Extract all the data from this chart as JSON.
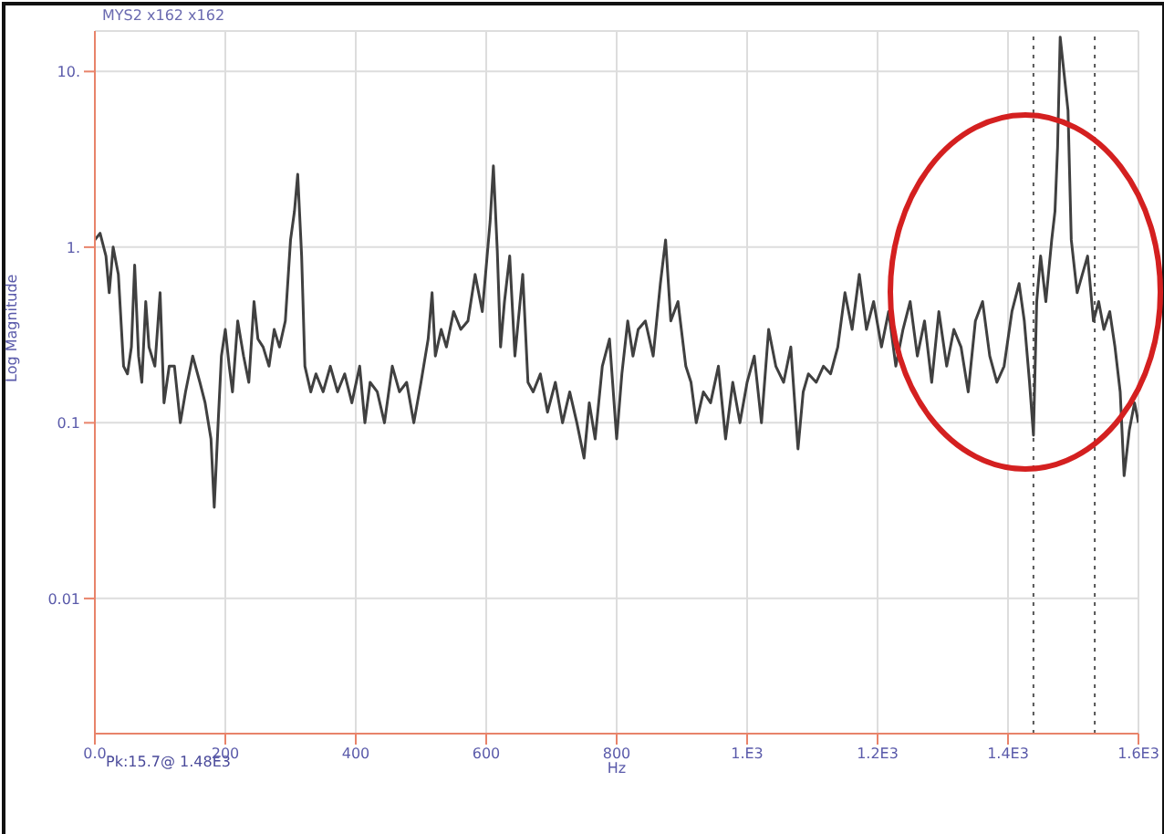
{
  "chart_data": {
    "type": "line",
    "title": "MYS2 x162 x162",
    "xlabel": "Hz",
    "ylabel": "Log Magnitude",
    "annotations": [
      "Pk:15.7@ 1.48E3"
    ],
    "x": [
      0,
      8,
      17,
      22,
      28,
      36,
      44,
      50,
      56,
      61,
      67,
      72,
      78,
      83,
      92,
      100,
      106,
      114,
      122,
      131,
      139,
      150,
      161,
      169,
      178,
      183,
      189,
      194,
      200,
      206,
      211,
      219,
      228,
      236,
      244,
      250,
      258,
      267,
      275,
      283,
      292,
      300,
      306,
      311,
      317,
      322,
      331,
      339,
      350,
      361,
      372,
      383,
      394,
      406,
      414,
      422,
      433,
      444,
      456,
      467,
      478,
      489,
      500,
      511,
      517,
      522,
      531,
      539,
      550,
      561,
      572,
      583,
      594,
      606,
      611,
      617,
      622,
      628,
      636,
      644,
      656,
      664,
      672,
      683,
      694,
      706,
      717,
      728,
      739,
      750,
      758,
      767,
      778,
      789,
      800,
      808,
      817,
      825,
      833,
      844,
      856,
      867,
      875,
      883,
      894,
      906,
      914,
      922,
      933,
      944,
      956,
      967,
      978,
      989,
      1000,
      1011,
      1022,
      1033,
      1044,
      1056,
      1067,
      1078,
      1086,
      1094,
      1106,
      1117,
      1128,
      1139,
      1150,
      1161,
      1172,
      1183,
      1194,
      1206,
      1217,
      1228,
      1239,
      1250,
      1261,
      1272,
      1283,
      1294,
      1306,
      1317,
      1328,
      1339,
      1350,
      1361,
      1372,
      1383,
      1394,
      1406,
      1417,
      1425,
      1433,
      1439,
      1444,
      1450,
      1458,
      1467,
      1472,
      1476,
      1480,
      1492,
      1497,
      1506,
      1514,
      1522,
      1531,
      1539,
      1547,
      1556,
      1564,
      1572,
      1578,
      1586,
      1594,
      1600
    ],
    "series": [
      {
        "color": "#404040",
        "values": [
          1.1,
          1.2,
          0.89,
          0.55,
          1.0,
          0.7,
          0.21,
          0.19,
          0.27,
          0.79,
          0.24,
          0.17,
          0.49,
          0.27,
          0.21,
          0.55,
          0.13,
          0.21,
          0.21,
          0.1,
          0.15,
          0.24,
          0.17,
          0.13,
          0.081,
          0.033,
          0.1,
          0.24,
          0.34,
          0.21,
          0.15,
          0.38,
          0.24,
          0.17,
          0.49,
          0.3,
          0.27,
          0.21,
          0.34,
          0.27,
          0.38,
          1.1,
          1.6,
          2.6,
          0.89,
          0.21,
          0.15,
          0.19,
          0.15,
          0.21,
          0.15,
          0.19,
          0.13,
          0.21,
          0.1,
          0.17,
          0.15,
          0.1,
          0.21,
          0.15,
          0.17,
          0.1,
          0.17,
          0.3,
          0.55,
          0.24,
          0.34,
          0.27,
          0.43,
          0.34,
          0.38,
          0.7,
          0.43,
          1.4,
          2.9,
          0.95,
          0.27,
          0.49,
          0.89,
          0.24,
          0.7,
          0.17,
          0.15,
          0.19,
          0.115,
          0.17,
          0.1,
          0.15,
          0.1,
          0.063,
          0.13,
          0.081,
          0.21,
          0.3,
          0.081,
          0.19,
          0.38,
          0.24,
          0.34,
          0.38,
          0.24,
          0.62,
          1.1,
          0.38,
          0.49,
          0.21,
          0.17,
          0.1,
          0.15,
          0.13,
          0.21,
          0.081,
          0.17,
          0.1,
          0.17,
          0.24,
          0.1,
          0.34,
          0.21,
          0.17,
          0.27,
          0.071,
          0.15,
          0.19,
          0.17,
          0.21,
          0.19,
          0.27,
          0.55,
          0.34,
          0.7,
          0.34,
          0.49,
          0.27,
          0.43,
          0.21,
          0.34,
          0.49,
          0.24,
          0.38,
          0.17,
          0.43,
          0.21,
          0.34,
          0.27,
          0.15,
          0.38,
          0.49,
          0.24,
          0.17,
          0.21,
          0.43,
          0.62,
          0.38,
          0.17,
          0.085,
          0.49,
          0.89,
          0.49,
          1.1,
          1.6,
          3.7,
          15.7,
          6.0,
          1.1,
          0.55,
          0.7,
          0.89,
          0.38,
          0.49,
          0.34,
          0.43,
          0.27,
          0.15,
          0.05,
          0.091,
          0.13,
          0.1
        ]
      }
    ],
    "xlim": [
      0,
      1600
    ],
    "xticks": [
      {
        "value": 0,
        "label": "0.0"
      },
      200,
      400,
      600,
      800,
      {
        "value": 1000,
        "label": "1.E3"
      },
      {
        "value": 1200,
        "label": "1.2E3"
      },
      {
        "value": 1400,
        "label": "1.4E3"
      },
      {
        "value": 1600,
        "label": "1.6E3"
      }
    ],
    "ylim": [
      0.0017,
      17
    ],
    "yticks": [
      {
        "value": 0.01,
        "label": "0.01"
      },
      {
        "value": 0.1,
        "label": "0.1"
      },
      {
        "value": 1,
        "label": "1."
      },
      {
        "value": 10,
        "label": "10."
      }
    ],
    "log": "y",
    "grid": true,
    "legend": false,
    "marker": "none",
    "line_style": "solid",
    "ref_lines": [
      {
        "axis": "x",
        "value": 1439,
        "color": "#555555",
        "line_style": "dotted"
      },
      {
        "axis": "x",
        "value": 1533,
        "color": "#555555",
        "line_style": "dotted"
      }
    ]
  }
}
